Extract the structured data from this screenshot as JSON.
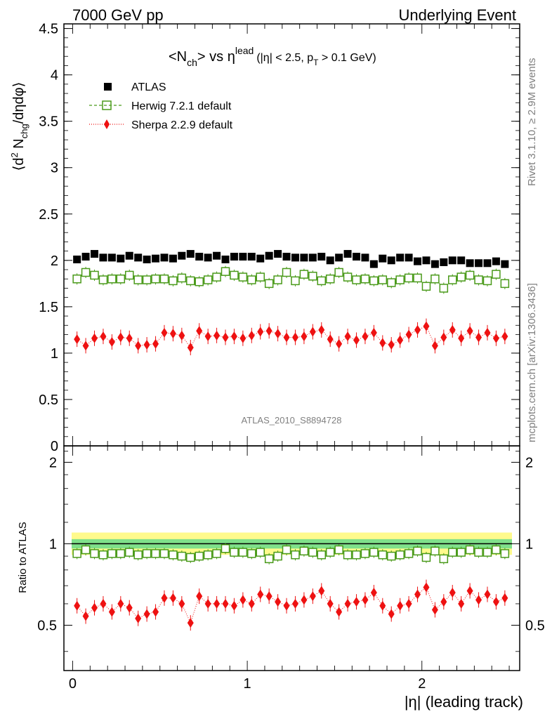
{
  "header": {
    "energy": "7000 GeV pp",
    "process": "Underlying Event"
  },
  "side": {
    "rivet": "Rivet 3.1.10, ≥ 2.9M events",
    "mcplots": "mcplots.cern.ch [arXiv:1306.3436]"
  },
  "analysis_id": "ATLAS_2010_S8894728",
  "chart_data": {
    "type": "scatter",
    "title": {
      "pre": "<N",
      "sub1": "ch",
      "mid": "> vs η",
      "sup": "lead",
      "cut1": "(|η| < 2.5, p",
      "sub2": "T",
      "cut2": " > 0.1 GeV)"
    },
    "xlabel": "|η| (leading track)",
    "ylabel": {
      "a": "⟨d",
      "b": "2",
      "c": " N",
      "d": "chg",
      "e": "/dηdφ⟩"
    },
    "ratio_ylabel": "Ratio to ATLAS",
    "xlim": [
      -0.05,
      2.56
    ],
    "ylim": [
      0,
      4.55
    ],
    "ratio_ylim": [
      0.34,
      2.3
    ],
    "x_ticks": [
      "0",
      "1",
      "2"
    ],
    "y_ticks": [
      "0",
      "0.5",
      "1",
      "1.5",
      "2",
      "2.5",
      "3",
      "3.5",
      "4",
      "4.5"
    ],
    "ratio_ticks": [
      "0.5",
      "1",
      "2"
    ],
    "x": [
      0.025,
      0.075,
      0.125,
      0.175,
      0.225,
      0.275,
      0.325,
      0.375,
      0.425,
      0.475,
      0.525,
      0.575,
      0.625,
      0.675,
      0.725,
      0.775,
      0.825,
      0.875,
      0.925,
      0.975,
      1.025,
      1.075,
      1.125,
      1.175,
      1.225,
      1.275,
      1.325,
      1.375,
      1.425,
      1.475,
      1.525,
      1.575,
      1.625,
      1.675,
      1.725,
      1.775,
      1.825,
      1.875,
      1.925,
      1.975,
      2.025,
      2.075,
      2.125,
      2.175,
      2.225,
      2.275,
      2.325,
      2.375,
      2.425,
      2.475
    ],
    "series": [
      {
        "name": "ATLAS",
        "color": "#000000",
        "values": [
          2.01,
          2.04,
          2.07,
          2.03,
          2.03,
          2.02,
          2.05,
          2.03,
          2.01,
          2.02,
          2.03,
          2.02,
          2.05,
          2.07,
          2.04,
          2.03,
          2.05,
          2.01,
          2.04,
          2.04,
          2.04,
          2.02,
          2.05,
          2.07,
          2.04,
          2.03,
          2.03,
          2.03,
          2.04,
          2.0,
          2.03,
          2.07,
          2.04,
          2.03,
          1.96,
          2.02,
          2.0,
          2.03,
          2.03,
          1.99,
          2.0,
          1.96,
          1.98,
          2.0,
          2.0,
          1.97,
          1.97,
          1.97,
          1.99,
          1.96
        ]
      },
      {
        "name": "Herwig 7.2.1 default",
        "color": "#4a9a1a",
        "values": [
          1.8,
          1.87,
          1.84,
          1.79,
          1.8,
          1.8,
          1.84,
          1.79,
          1.79,
          1.8,
          1.8,
          1.78,
          1.81,
          1.78,
          1.77,
          1.79,
          1.82,
          1.88,
          1.84,
          1.82,
          1.79,
          1.82,
          1.75,
          1.79,
          1.87,
          1.78,
          1.85,
          1.83,
          1.78,
          1.8,
          1.87,
          1.82,
          1.79,
          1.8,
          1.78,
          1.79,
          1.76,
          1.79,
          1.81,
          1.81,
          1.72,
          1.8,
          1.7,
          1.79,
          1.82,
          1.84,
          1.79,
          1.78,
          1.85,
          1.75
        ]
      },
      {
        "name": "Sherpa 2.2.9 default",
        "color": "#ee1111",
        "values": [
          1.15,
          1.08,
          1.16,
          1.18,
          1.12,
          1.17,
          1.16,
          1.08,
          1.09,
          1.1,
          1.22,
          1.21,
          1.19,
          1.06,
          1.24,
          1.18,
          1.19,
          1.17,
          1.18,
          1.16,
          1.19,
          1.23,
          1.24,
          1.21,
          1.17,
          1.17,
          1.18,
          1.23,
          1.25,
          1.15,
          1.1,
          1.18,
          1.14,
          1.18,
          1.22,
          1.11,
          1.09,
          1.14,
          1.2,
          1.25,
          1.29,
          1.08,
          1.17,
          1.25,
          1.16,
          1.24,
          1.17,
          1.22,
          1.16,
          1.18
        ]
      }
    ],
    "ratio_series": [
      {
        "name": "Herwig 7.2.1 default",
        "values": [
          0.92,
          0.95,
          0.92,
          0.91,
          0.92,
          0.92,
          0.93,
          0.91,
          0.92,
          0.92,
          0.92,
          0.91,
          0.9,
          0.89,
          0.9,
          0.91,
          0.92,
          0.96,
          0.93,
          0.93,
          0.92,
          0.93,
          0.88,
          0.9,
          0.95,
          0.91,
          0.94,
          0.93,
          0.91,
          0.93,
          0.95,
          0.91,
          0.91,
          0.92,
          0.93,
          0.91,
          0.9,
          0.91,
          0.92,
          0.94,
          0.89,
          0.94,
          0.88,
          0.93,
          0.93,
          0.95,
          0.93,
          0.93,
          0.95,
          0.92
        ]
      },
      {
        "name": "Sherpa 2.2.9 default",
        "values": [
          0.59,
          0.54,
          0.58,
          0.6,
          0.56,
          0.6,
          0.58,
          0.53,
          0.55,
          0.56,
          0.63,
          0.63,
          0.6,
          0.51,
          0.64,
          0.6,
          0.6,
          0.6,
          0.59,
          0.62,
          0.6,
          0.65,
          0.64,
          0.61,
          0.59,
          0.6,
          0.62,
          0.64,
          0.67,
          0.6,
          0.56,
          0.6,
          0.61,
          0.62,
          0.66,
          0.59,
          0.55,
          0.59,
          0.6,
          0.65,
          0.69,
          0.57,
          0.61,
          0.66,
          0.6,
          0.67,
          0.62,
          0.65,
          0.61,
          0.63
        ]
      }
    ],
    "band": {
      "data_lo": 0.96,
      "data_hi": 1.04,
      "data_color": "#7fe08a",
      "total_lo": 0.91,
      "total_hi": 1.1,
      "total_color": "#fffa8c"
    },
    "legend_position": "top-left"
  }
}
